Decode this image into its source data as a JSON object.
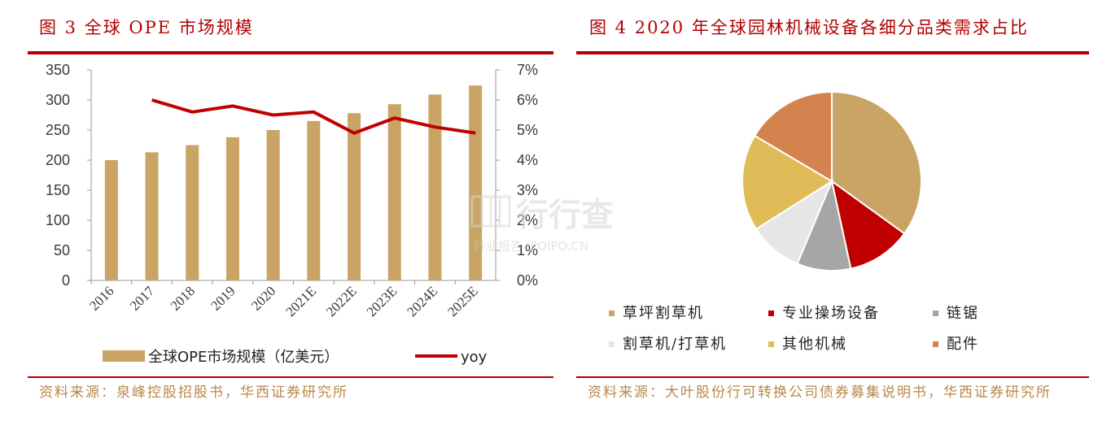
{
  "left": {
    "title": "图 3   全球 OPE 市场规模",
    "source": "资料来源：泉峰控股招股书，华西证券研究所"
  },
  "right": {
    "title": "图 4 2020 年全球园林机械设备各细分品类需求占比",
    "source": "资料来源：大叶股份行可转换公司债券募集说明书，华西证券研究所"
  },
  "watermark": {
    "main": "行行查",
    "sub": "行业报告 IPOIPO.CN"
  },
  "colors": {
    "accent": "#b30000",
    "bar": "#c9a465",
    "line": "#c00000",
    "source_text": "#b8874b"
  },
  "chart_data": [
    {
      "type": "bar+line",
      "categories": [
        "2016",
        "2017",
        "2018",
        "2019",
        "2020",
        "2021E",
        "2022E",
        "2023E",
        "2024E",
        "2025E"
      ],
      "series": [
        {
          "name": "全球OPE市场规模（亿美元）",
          "type": "bar",
          "axis": "left",
          "values": [
            200,
            213,
            225,
            238,
            250,
            265,
            278,
            293,
            309,
            324
          ]
        },
        {
          "name": "yoy",
          "type": "line",
          "axis": "right",
          "values": [
            null,
            6.0,
            5.6,
            5.8,
            5.5,
            5.6,
            4.9,
            5.4,
            5.1,
            4.9
          ]
        }
      ],
      "y_left": {
        "min": 0,
        "max": 350,
        "ticks": [
          "0",
          "50",
          "100",
          "150",
          "200",
          "250",
          "300",
          "350"
        ]
      },
      "y_right": {
        "min": 0,
        "max": 7,
        "ticks": [
          "0%",
          "1%",
          "2%",
          "3%",
          "4%",
          "5%",
          "6%",
          "7%"
        ]
      },
      "grid": false,
      "legend": "bottom"
    },
    {
      "type": "pie",
      "labels": [
        "草坪割草机",
        "专业操场设备",
        "链锯",
        "割草机/打草机",
        "其他机械",
        "配件"
      ],
      "values": [
        36,
        12,
        10,
        10,
        18,
        17
      ],
      "colors": [
        "#c9a465",
        "#c00000",
        "#a6a6a6",
        "#e6e6e6",
        "#e0bc58",
        "#d4834f"
      ],
      "legend": "bottom"
    }
  ]
}
